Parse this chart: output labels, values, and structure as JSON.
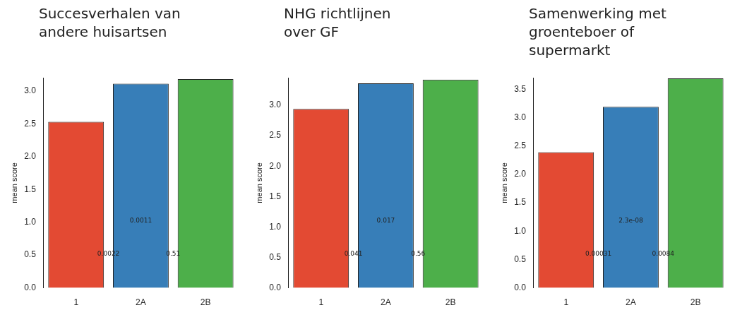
{
  "chart_data": [
    {
      "type": "bar",
      "title": "Succesverhalen van andere huisartsen",
      "ylabel": "mean score",
      "categories": [
        "1",
        "2A",
        "2B"
      ],
      "values": [
        2.53,
        3.11,
        3.18
      ],
      "colors": [
        "#e34a33",
        "#377eb8",
        "#4daf4a"
      ],
      "ylim": [
        0,
        3.2
      ],
      "yticks": [
        {
          "value": 0,
          "label": "0.0"
        },
        {
          "value": 0.5,
          "label": "0.5"
        },
        {
          "value": 1,
          "label": "1.0"
        },
        {
          "value": 1.5,
          "label": "1.5"
        },
        {
          "value": 2,
          "label": "2.0"
        },
        {
          "value": 2.5,
          "label": "2.5"
        },
        {
          "value": 3,
          "label": "3.0"
        }
      ],
      "grid": false,
      "legend": false,
      "annotations": [
        "0.0011",
        "0.0022",
        "0.51"
      ]
    },
    {
      "type": "bar",
      "title": "NHG richtlijnen over GF",
      "ylabel": "mean score",
      "categories": [
        "1",
        "2A",
        "2B"
      ],
      "values": [
        2.94,
        3.36,
        3.42
      ],
      "colors": [
        "#e34a33",
        "#377eb8",
        "#4daf4a"
      ],
      "ylim": [
        0,
        3.45
      ],
      "yticks": [
        {
          "value": 0,
          "label": "0.0"
        },
        {
          "value": 0.5,
          "label": "0.5"
        },
        {
          "value": 1,
          "label": "1.0"
        },
        {
          "value": 1.5,
          "label": "1.5"
        },
        {
          "value": 2,
          "label": "2.0"
        },
        {
          "value": 2.5,
          "label": "2.5"
        },
        {
          "value": 3,
          "label": "3.0"
        }
      ],
      "grid": false,
      "legend": false,
      "annotations": [
        "0.017",
        "0.041",
        "0.56"
      ]
    },
    {
      "type": "bar",
      "title": "Samenwerking met groenteboer of supermarkt",
      "ylabel": "mean score",
      "categories": [
        "1",
        "2A",
        "2B"
      ],
      "values": [
        2.39,
        3.19,
        3.69
      ],
      "colors": [
        "#e34a33",
        "#377eb8",
        "#4daf4a"
      ],
      "ylim": [
        0,
        3.7
      ],
      "yticks": [
        {
          "value": 0,
          "label": "0.0"
        },
        {
          "value": 0.5,
          "label": "0.5"
        },
        {
          "value": 1,
          "label": "1.0"
        },
        {
          "value": 1.5,
          "label": "1.5"
        },
        {
          "value": 2,
          "label": "2.0"
        },
        {
          "value": 2.5,
          "label": "2.5"
        },
        {
          "value": 3,
          "label": "3.0"
        },
        {
          "value": 3.5,
          "label": "3.5"
        }
      ],
      "grid": false,
      "legend": false,
      "annotations": [
        "2.3e-08",
        "0.00031",
        "0.0084"
      ]
    }
  ]
}
